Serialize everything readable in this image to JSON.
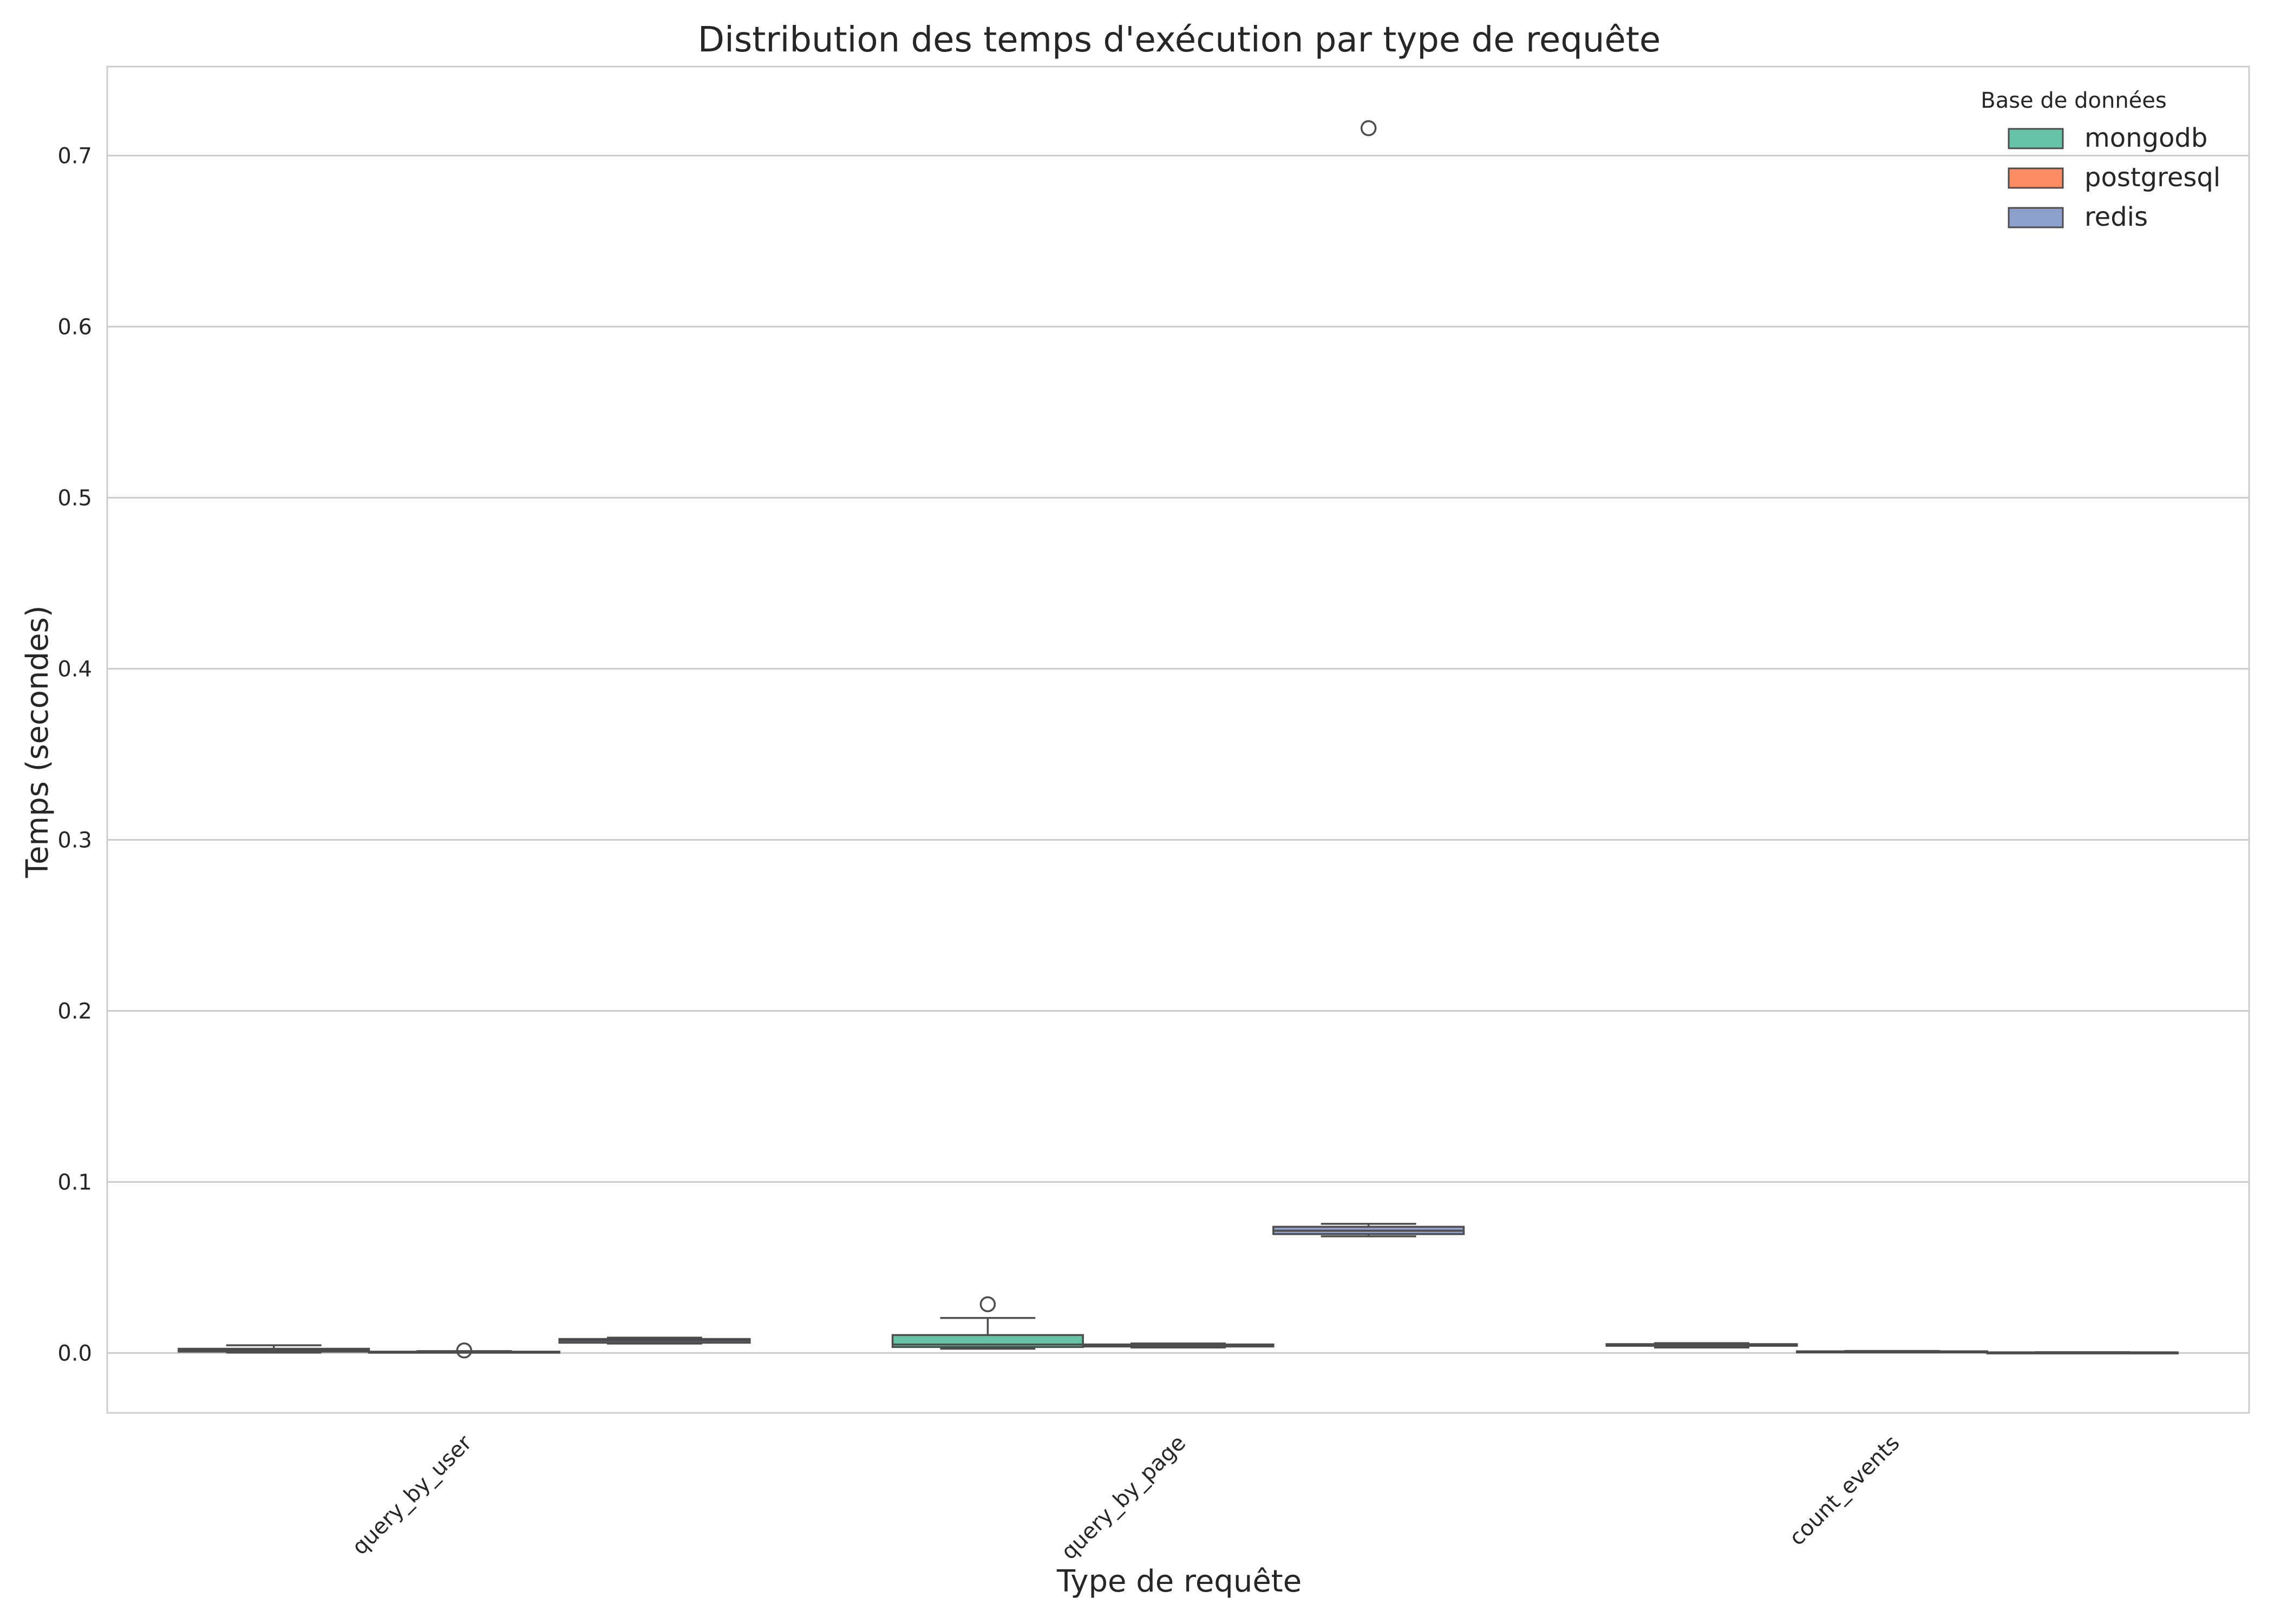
{
  "chart_data": {
    "type": "box",
    "title": "Distribution des temps d'exécution par type de requête",
    "xlabel": "Type de requête",
    "ylabel": "Temps (secondes)",
    "categories": [
      "query_by_user",
      "query_by_page",
      "count_events"
    ],
    "yticks": [
      0.0,
      0.1,
      0.2,
      0.3,
      0.4,
      0.5,
      0.6,
      0.7
    ],
    "ytick_labels": [
      "0.0",
      "0.1",
      "0.2",
      "0.3",
      "0.4",
      "0.5",
      "0.6",
      "0.7"
    ],
    "ylim": [
      -0.035,
      0.752
    ],
    "grid": "horizontal",
    "legend": {
      "title": "Base de données",
      "position": "top-right",
      "entries": [
        "mongodb",
        "postgresql",
        "redis"
      ]
    },
    "series": [
      {
        "name": "mongodb",
        "color": "#66c2a5",
        "boxes": [
          {
            "category": "query_by_user",
            "whislo": 0.0003,
            "q1": 0.0008,
            "med": 0.0015,
            "q3": 0.0025,
            "whishi": 0.0045,
            "fliers": []
          },
          {
            "category": "query_by_page",
            "whislo": 0.0025,
            "q1": 0.0035,
            "med": 0.005,
            "q3": 0.0105,
            "whishi": 0.0205,
            "fliers": [
              0.0285
            ]
          },
          {
            "category": "count_events",
            "whislo": 0.0032,
            "q1": 0.0042,
            "med": 0.0046,
            "q3": 0.0052,
            "whishi": 0.0058,
            "fliers": []
          }
        ]
      },
      {
        "name": "postgresql",
        "color": "#fc8d62",
        "boxes": [
          {
            "category": "query_by_user",
            "whislo": 0.0002,
            "q1": 0.0004,
            "med": 0.0006,
            "q3": 0.0008,
            "whishi": 0.0011,
            "fliers": [
              0.0015
            ]
          },
          {
            "category": "query_by_page",
            "whislo": 0.0032,
            "q1": 0.0038,
            "med": 0.0044,
            "q3": 0.005,
            "whishi": 0.0056,
            "fliers": []
          },
          {
            "category": "count_events",
            "whislo": 0.0004,
            "q1": 0.0006,
            "med": 0.0008,
            "q3": 0.001,
            "whishi": 0.0012,
            "fliers": []
          }
        ]
      },
      {
        "name": "redis",
        "color": "#8da0cb",
        "boxes": [
          {
            "category": "query_by_user",
            "whislo": 0.0055,
            "q1": 0.006,
            "med": 0.0072,
            "q3": 0.0082,
            "whishi": 0.009,
            "fliers": []
          },
          {
            "category": "query_by_page",
            "whislo": 0.0682,
            "q1": 0.0695,
            "med": 0.0715,
            "q3": 0.0738,
            "whishi": 0.0755,
            "fliers": [
              0.716
            ]
          },
          {
            "category": "count_events",
            "whislo": 0.0001,
            "q1": 0.0002,
            "med": 0.0003,
            "q3": 0.0004,
            "whishi": 0.0005,
            "fliers": []
          }
        ]
      }
    ]
  }
}
